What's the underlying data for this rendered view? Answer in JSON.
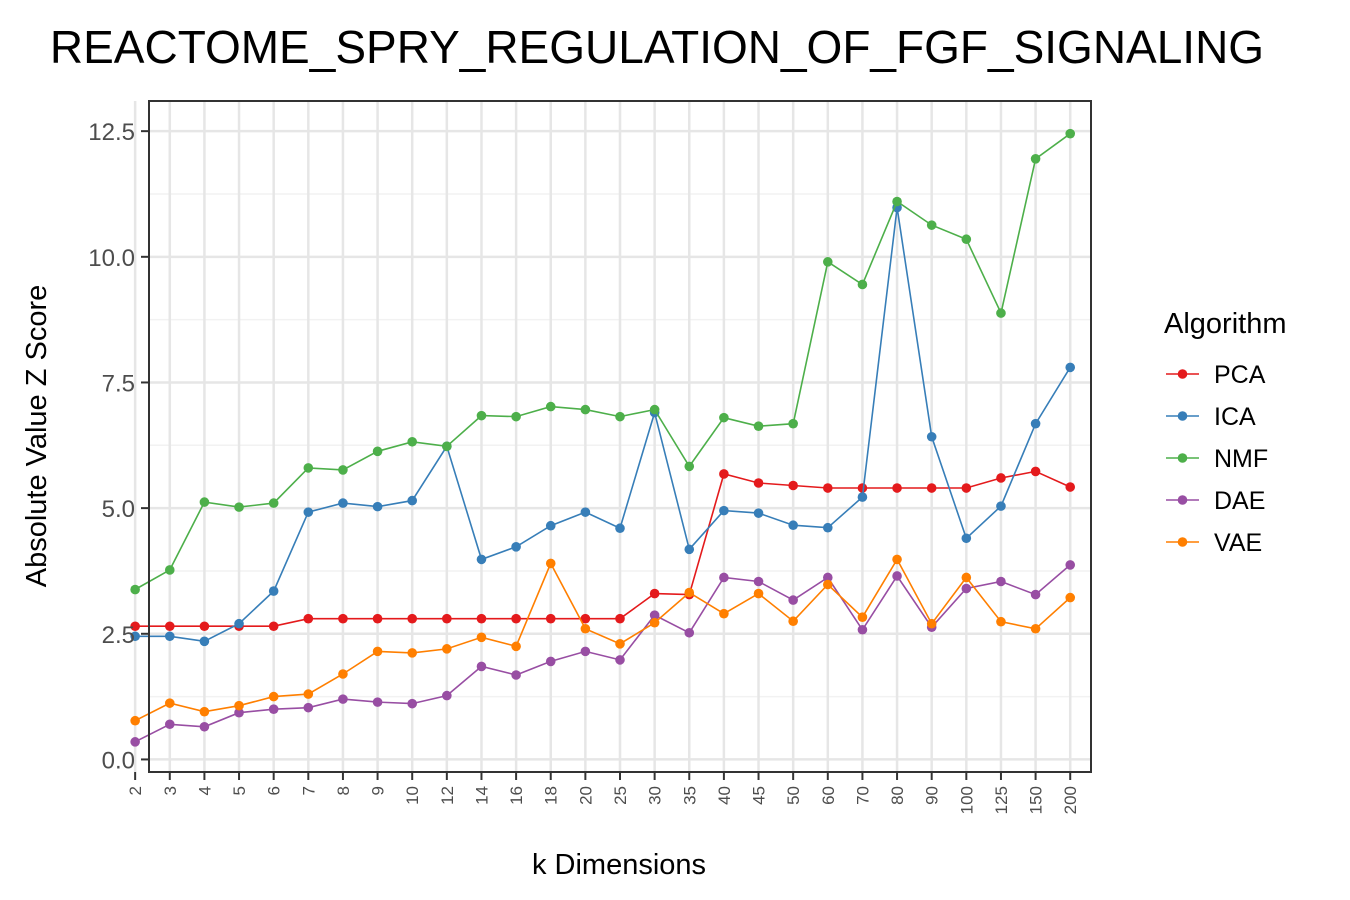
{
  "chart_data": {
    "type": "line",
    "title": "REACTOME_SPRY_REGULATION_OF_FGF_SIGNALING",
    "xlabel": "k Dimensions",
    "ylabel": "Absolute Value Z Score",
    "categories": [
      "2",
      "3",
      "4",
      "5",
      "6",
      "7",
      "8",
      "9",
      "10",
      "12",
      "14",
      "16",
      "18",
      "20",
      "25",
      "30",
      "35",
      "40",
      "45",
      "50",
      "60",
      "70",
      "80",
      "90",
      "100",
      "125",
      "150",
      "200"
    ],
    "ylim": [
      -0.25,
      13.1
    ],
    "yticks": [
      0.0,
      2.5,
      5.0,
      7.5,
      10.0,
      12.5
    ],
    "ytick_labels": [
      "0.0",
      "2.5",
      "5.0",
      "7.5",
      "10.0",
      "12.5"
    ],
    "grid": true,
    "legend": {
      "title": "Algorithm",
      "placement": "right"
    },
    "series": [
      {
        "name": "PCA",
        "color": "#e41a1c",
        "values": [
          2.65,
          2.65,
          2.65,
          2.65,
          2.65,
          2.8,
          2.8,
          2.8,
          2.8,
          2.8,
          2.8,
          2.8,
          2.8,
          2.8,
          2.8,
          3.3,
          3.28,
          5.68,
          5.5,
          5.45,
          5.4,
          5.4,
          5.4,
          5.4,
          5.4,
          5.6,
          5.73,
          5.42
        ]
      },
      {
        "name": "ICA",
        "color": "#377eb8",
        "values": [
          2.45,
          2.45,
          2.35,
          2.7,
          3.35,
          4.92,
          5.1,
          5.03,
          5.15,
          6.23,
          3.98,
          4.23,
          4.65,
          4.92,
          4.6,
          6.9,
          4.18,
          4.95,
          4.9,
          4.66,
          4.61,
          5.22,
          10.98,
          6.42,
          4.4,
          5.04,
          6.68,
          7.8
        ]
      },
      {
        "name": "NMF",
        "color": "#4daf4a",
        "values": [
          3.38,
          3.77,
          5.12,
          5.02,
          5.1,
          5.8,
          5.76,
          6.13,
          6.32,
          6.23,
          6.84,
          6.82,
          7.02,
          6.96,
          6.82,
          6.96,
          5.83,
          6.8,
          6.63,
          6.68,
          9.9,
          9.45,
          11.1,
          10.63,
          10.35,
          8.88,
          11.95,
          12.45
        ]
      },
      {
        "name": "DAE",
        "color": "#984ea3",
        "values": [
          0.35,
          0.7,
          0.65,
          0.93,
          1.0,
          1.03,
          1.2,
          1.14,
          1.11,
          1.27,
          1.85,
          1.68,
          1.95,
          2.15,
          1.98,
          2.87,
          2.52,
          3.62,
          3.54,
          3.17,
          3.62,
          2.58,
          3.65,
          2.63,
          3.4,
          3.54,
          3.28,
          3.87
        ]
      },
      {
        "name": "VAE",
        "color": "#ff7f00",
        "values": [
          0.77,
          1.12,
          0.95,
          1.07,
          1.25,
          1.3,
          1.7,
          2.15,
          2.12,
          2.2,
          2.43,
          2.25,
          3.9,
          2.6,
          2.3,
          2.72,
          3.32,
          2.9,
          3.3,
          2.75,
          3.48,
          2.83,
          3.98,
          2.7,
          3.62,
          2.74,
          2.6,
          3.22
        ]
      }
    ]
  }
}
